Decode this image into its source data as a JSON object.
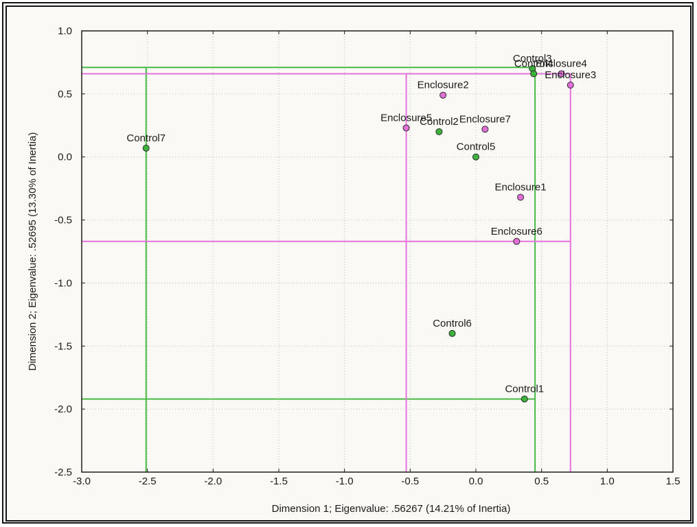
{
  "chart_data": {
    "type": "scatter",
    "title": "",
    "xlabel": "Dimension 1; Eigenvalue: .56267 (14.21% of Inertia)",
    "ylabel": "Dimension 2; Eigenvalue: .52695 (13.30% of Inertia)",
    "xlim": [
      -3.0,
      1.5
    ],
    "ylim": [
      -2.5,
      1.0
    ],
    "xticks": [
      -3.0,
      -2.5,
      -2.0,
      -1.5,
      -1.0,
      -0.5,
      0.0,
      0.5,
      1.0,
      1.5
    ],
    "yticks": [
      -2.5,
      -2.0,
      -1.5,
      -1.0,
      -0.5,
      0.0,
      0.5,
      1.0
    ],
    "xtick_labels": [
      "-3.0",
      "-2.5",
      "-2.0",
      "-1.5",
      "-1.0",
      "-0.5",
      "0.0",
      "0.5",
      "1.0",
      "1.5"
    ],
    "ytick_labels": [
      "-2.5",
      "-2.0",
      "-1.5",
      "-1.0",
      "-0.5",
      "0.0",
      "0.5",
      "1.0"
    ],
    "grid": true,
    "colors": {
      "control": "#3cb43c",
      "control_line": "#44bb44",
      "enclosure": "#e070d8",
      "enclosure_line": "#e472dc",
      "marker_edge": "#2a2a2a"
    },
    "series": [
      {
        "group": "control",
        "points": [
          {
            "label": "Control1",
            "x": 0.37,
            "y": -1.92
          },
          {
            "label": "Control2",
            "x": -0.28,
            "y": 0.2
          },
          {
            "label": "Control3",
            "x": 0.43,
            "y": 0.7
          },
          {
            "label": "Control4",
            "x": 0.44,
            "y": 0.66
          },
          {
            "label": "Control5",
            "x": 0.0,
            "y": 0.0
          },
          {
            "label": "Control6",
            "x": -0.18,
            "y": -1.4
          },
          {
            "label": "Control7",
            "x": -2.51,
            "y": 0.07
          }
        ]
      },
      {
        "group": "enclosure",
        "points": [
          {
            "label": "Enclosure1",
            "x": 0.34,
            "y": -0.32
          },
          {
            "label": "Enclosure2",
            "x": -0.25,
            "y": 0.49
          },
          {
            "label": "Enclosure3",
            "x": 0.72,
            "y": 0.57
          },
          {
            "label": "Enclosure4",
            "x": 0.65,
            "y": 0.66
          },
          {
            "label": "Enclosure5",
            "x": -0.53,
            "y": 0.23
          },
          {
            "label": "Enclosure6",
            "x": 0.31,
            "y": -0.67
          },
          {
            "label": "Enclosure7",
            "x": 0.07,
            "y": 0.22
          }
        ]
      }
    ],
    "convex_hulls": {
      "control": {
        "xmin": -2.51,
        "xmax": 0.45,
        "ymin": -1.92,
        "ymax": 0.71
      },
      "enclosure": {
        "xmin": -0.53,
        "xmax": 0.72,
        "ymin": -0.67,
        "ymax": 0.66
      }
    }
  }
}
